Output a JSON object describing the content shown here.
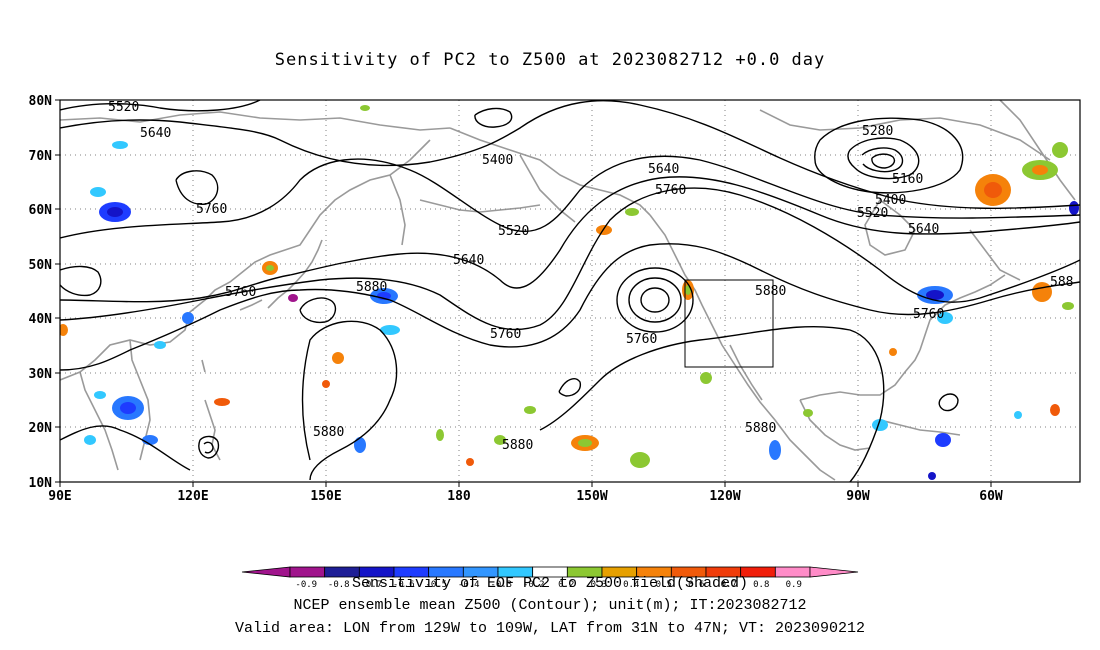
{
  "title": "Sensitivity of PC2 to Z500 at 2023082712 +0.0 day",
  "axes": {
    "lat_labels": [
      "80N",
      "70N",
      "60N",
      "50N",
      "40N",
      "30N",
      "20N",
      "10N"
    ],
    "lon_labels": [
      "90E",
      "120E",
      "150E",
      "180",
      "150W",
      "120W",
      "90W",
      "60W"
    ]
  },
  "contour_labels": [
    "5520",
    "5640",
    "5400",
    "5640",
    "5760",
    "5280",
    "5160",
    "5400",
    "5520",
    "5760",
    "5640",
    "5520",
    "5640",
    "5760",
    "5880",
    "5880",
    "5760",
    "5760",
    "5880",
    "5760",
    "588",
    "5880",
    "5880",
    "5880"
  ],
  "colorbar": {
    "tick_labels": [
      "-0.9",
      "-0.8",
      "-0.7",
      "-0.6",
      "-0.5",
      "-0.4",
      "-0.3",
      "-0.2",
      "0.2",
      "0.3",
      "0.4",
      "0.5",
      "0.6",
      "0.7",
      "0.8",
      "0.9"
    ],
    "colors": [
      "#a0148c",
      "#1e1e96",
      "#1414c8",
      "#1e3cff",
      "#2878ff",
      "#3296ff",
      "#32c8ff",
      "#ffffff",
      "#8cc832",
      "#e6a000",
      "#f5820a",
      "#f05a0a",
      "#f03c0a",
      "#f01e0a",
      "#ff8cc8"
    ]
  },
  "footer": {
    "line1": "Sensitivity of EOF PC2 to Z500 field(Shaded)",
    "line2": "NCEP ensemble mean Z500 (Contour); unit(m); IT:2023082712",
    "line3": "Valid area: LON from 129W to 109W, LAT from 31N to 47N; VT: 2023090212"
  }
}
